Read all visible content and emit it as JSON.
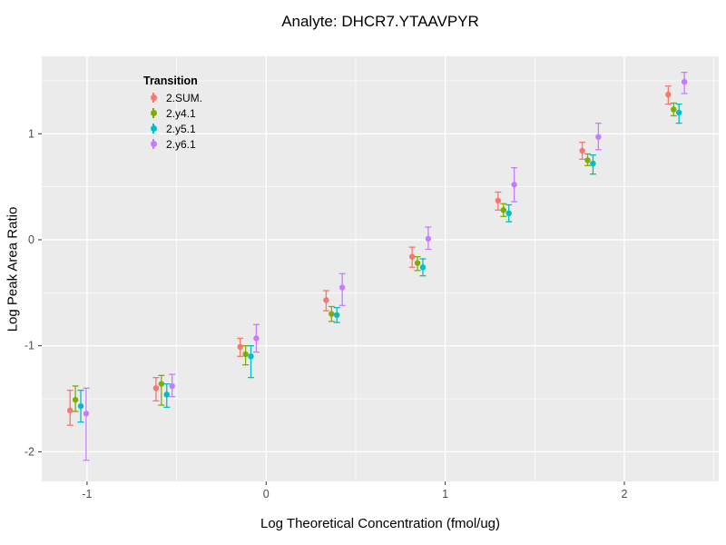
{
  "title": "Analyte: DHCR7.YTAAVPYR",
  "chart_data": {
    "type": "scatter",
    "title": "Analyte: DHCR7.YTAAVPYR",
    "xlabel": "Log Theoretical Concentration (fmol/ug)",
    "ylabel": "Log Peak Area Ratio",
    "xlim": [
      -1.253,
      2.527
    ],
    "ylim": [
      -2.28,
      1.731
    ],
    "x_major_ticks": [
      -1,
      0,
      1,
      2
    ],
    "y_major_ticks": [
      -2,
      -1,
      0,
      1
    ],
    "x_minor_ticks": [
      -0.5,
      0.5,
      1.5,
      2.5
    ],
    "y_minor_ticks": [
      -1.5,
      -0.5,
      0.5,
      1.5
    ],
    "panel_background": "#EBEBEB",
    "grid_color": "#FFFFFF",
    "tick_label_color": "#4D4D4D",
    "legend": {
      "title": "Transition",
      "position": "top-left-inside"
    },
    "x": [
      -1.05,
      -0.57,
      -0.1,
      0.38,
      0.86,
      1.34,
      1.81,
      2.29
    ],
    "series": [
      {
        "name": "2.SUM.",
        "color": "#F8766D",
        "dodge": -0.045,
        "y": [
          -1.61,
          -1.4,
          -1.01,
          -0.57,
          -0.16,
          0.37,
          0.84,
          1.37
        ],
        "y_lo": [
          -1.75,
          -1.52,
          -1.1,
          -0.67,
          -0.26,
          0.28,
          0.76,
          1.28
        ],
        "y_hi": [
          -1.42,
          -1.3,
          -0.93,
          -0.48,
          -0.07,
          0.45,
          0.92,
          1.45
        ]
      },
      {
        "name": "2.y4.1",
        "color": "#7CAE00",
        "dodge": -0.015,
        "y": [
          -1.51,
          -1.36,
          -1.08,
          -0.7,
          -0.22,
          0.28,
          0.75,
          1.23
        ],
        "y_lo": [
          -1.62,
          -1.56,
          -1.18,
          -0.77,
          -0.29,
          0.22,
          0.7,
          1.17
        ],
        "y_hi": [
          -1.38,
          -1.28,
          -1.0,
          -0.63,
          -0.16,
          0.34,
          0.81,
          1.29
        ]
      },
      {
        "name": "2.y5.1",
        "color": "#00BFC4",
        "dodge": 0.015,
        "y": [
          -1.57,
          -1.46,
          -1.1,
          -0.71,
          -0.26,
          0.25,
          0.72,
          1.2
        ],
        "y_lo": [
          -1.72,
          -1.58,
          -1.3,
          -0.78,
          -0.34,
          0.17,
          0.62,
          1.1
        ],
        "y_hi": [
          -1.42,
          -1.36,
          -1.0,
          -0.64,
          -0.18,
          0.33,
          0.8,
          1.28
        ]
      },
      {
        "name": "2.y6.1",
        "color": "#C77CFF",
        "dodge": 0.045,
        "y": [
          -1.64,
          -1.38,
          -0.93,
          -0.45,
          0.01,
          0.52,
          0.97,
          1.49
        ],
        "y_lo": [
          -2.08,
          -1.48,
          -1.06,
          -0.62,
          -0.09,
          0.36,
          0.85,
          1.38
        ],
        "y_hi": [
          -1.4,
          -1.27,
          -0.8,
          -0.32,
          0.12,
          0.68,
          1.1,
          1.58
        ]
      }
    ]
  }
}
